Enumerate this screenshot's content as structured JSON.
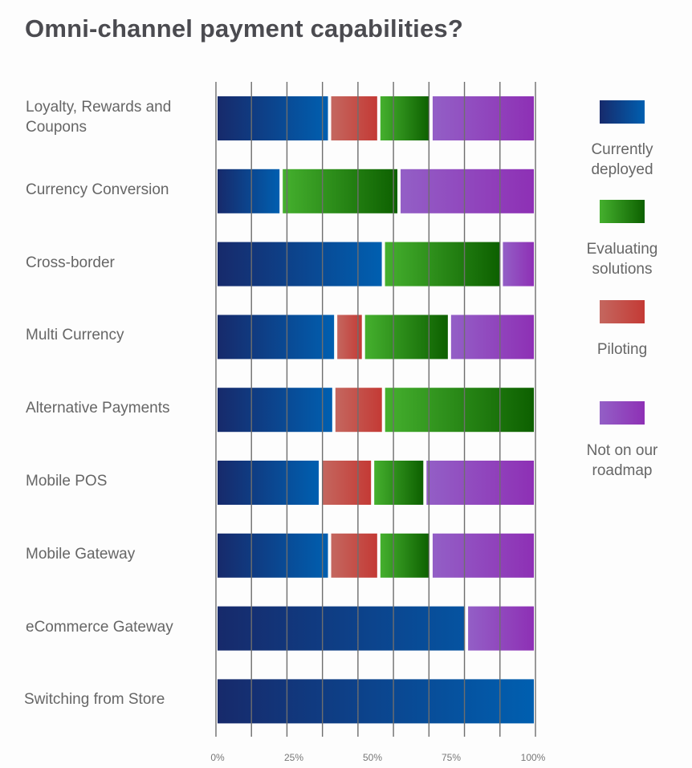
{
  "chart_data": {
    "type": "bar",
    "orientation": "horizontal",
    "stacked": true,
    "title": "Omni-channel payment capabilities?",
    "xlabel": "",
    "ylabel": "",
    "xlim": [
      0,
      100
    ],
    "x_tick_labels": [
      "0%",
      "25%",
      "50%",
      "75%",
      "100%"
    ],
    "grid": true,
    "legend_position": "right",
    "categories": [
      "Loyalty, Rewards and Coupons",
      "Currency Conversion",
      "Cross-border",
      "Multi Currency",
      "Alternative Payments",
      "Mobile POS",
      "Mobile Gateway",
      "eCommerce Gateway",
      "Switching from Store"
    ],
    "series": [
      {
        "name": "Currently deployed",
        "color_from": "#172a6b",
        "color_to": "#005fb0",
        "values": [
          36,
          20,
          53,
          38,
          37,
          33,
          36,
          79,
          100
        ]
      },
      {
        "name": "Piloting",
        "color_from": "#c4675f",
        "color_to": "#c43a35",
        "values": [
          15,
          0,
          0,
          8,
          15,
          16,
          15,
          0,
          0
        ]
      },
      {
        "name": "Evaluating solutions",
        "color_from": "#45b02e",
        "color_to": "#0d6000",
        "values": [
          16,
          37,
          37,
          27,
          48,
          16,
          16,
          0,
          0
        ]
      },
      {
        "name": "Not on our roadmap",
        "color_from": "#935fc6",
        "color_to": "#8e30b5",
        "values": [
          33,
          43,
          10,
          27,
          0,
          35,
          33,
          21,
          0
        ]
      }
    ],
    "legend": [
      {
        "label": "Currently deployed",
        "color_from": "#172a6b",
        "color_to": "#005fb0"
      },
      {
        "label": "Evaluating solutions",
        "color_from": "#45b02e",
        "color_to": "#0d6000"
      },
      {
        "label": "Piloting",
        "color_from": "#c4675f",
        "color_to": "#c43a35"
      },
      {
        "label": "Not on our roadmap",
        "color_from": "#935fc6",
        "color_to": "#8e30b5"
      }
    ]
  }
}
